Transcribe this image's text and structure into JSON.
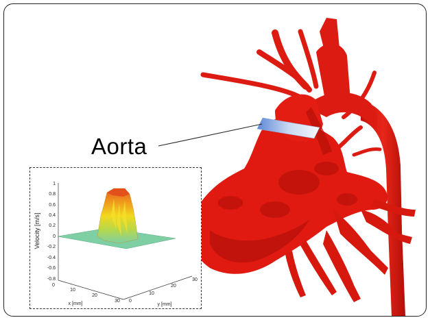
{
  "annotation": {
    "label": "Aorta"
  },
  "inset_plot": {
    "z_label": "Velocity [m/s]",
    "x_label": "x [mm]",
    "y_label": "y [mm]",
    "z_ticks": [
      "1",
      "0.8",
      "0.6",
      "0.4",
      "0.2",
      "0",
      "-0.2",
      "-0.4",
      "-0.6",
      "-0.8"
    ],
    "x_ticks": [
      "0",
      "10",
      "20",
      "30"
    ],
    "y_ticks": [
      "0",
      "10",
      "20",
      "30"
    ]
  },
  "colors": {
    "vessel": "#e01a10",
    "vessel_shadow": "#a80d08",
    "plane_blue": "#6e98dc",
    "plot_base": "#7fcfa4",
    "plot_peak": "#e45a1c"
  }
}
